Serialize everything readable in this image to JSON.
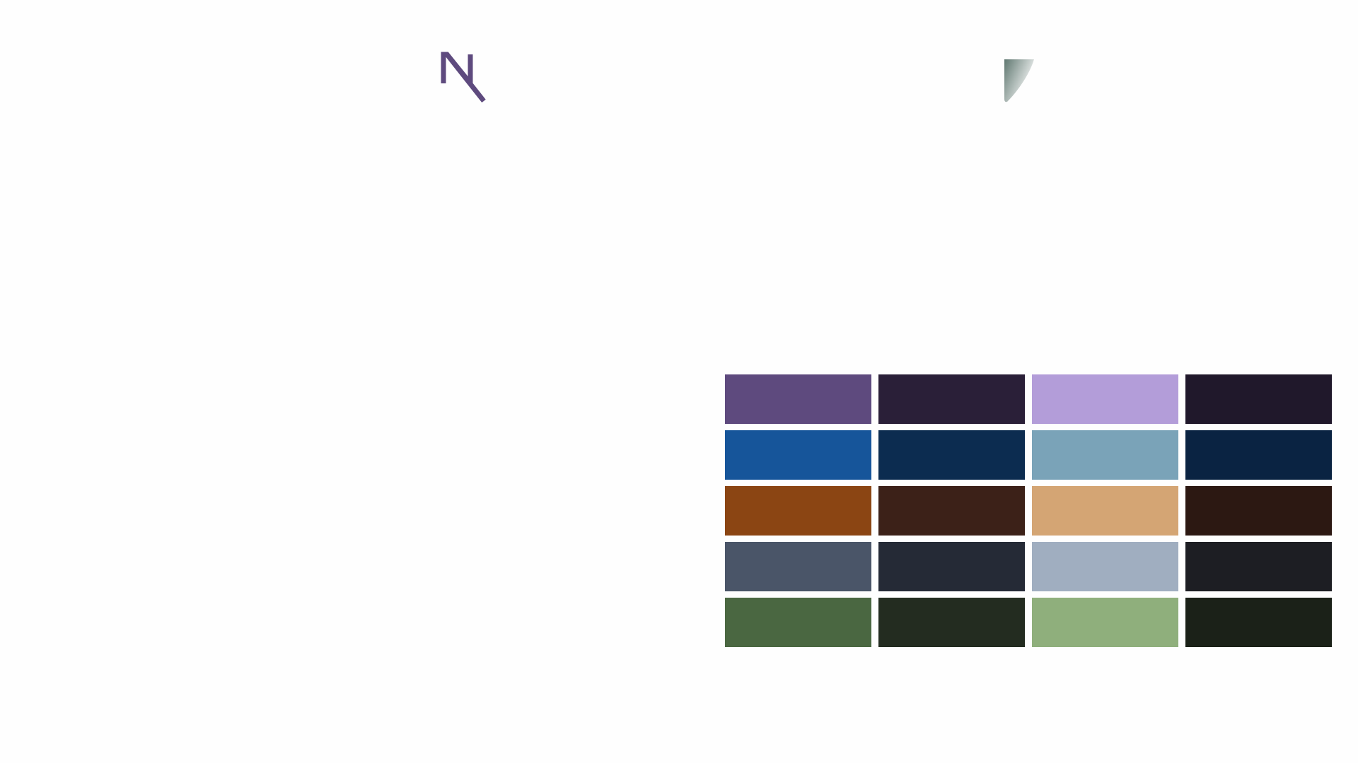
{
  "logo": {
    "icon": "monogram-n-icon",
    "color": "#5e4a7e"
  },
  "shield": {
    "icon": "shield-icon",
    "color_start": "#5f7770",
    "color_end": "#ffffff"
  },
  "palette": {
    "rows": [
      {
        "name": "purple",
        "colors": [
          "#5e4a7e",
          "#2a1f38",
          "#b39dd9",
          "#20182b"
        ]
      },
      {
        "name": "blue",
        "colors": [
          "#16559a",
          "#0c2c50",
          "#7aa3b8",
          "#0a2342"
        ]
      },
      {
        "name": "orange",
        "colors": [
          "#8b4513",
          "#3c2118",
          "#d4a574",
          "#2c1812"
        ]
      },
      {
        "name": "slate",
        "colors": [
          "#4a5568",
          "#252a36",
          "#a0aec0",
          "#1d1e23"
        ]
      },
      {
        "name": "green",
        "colors": [
          "#4a6741",
          "#232c20",
          "#8faf7c",
          "#1b2118"
        ]
      }
    ]
  }
}
